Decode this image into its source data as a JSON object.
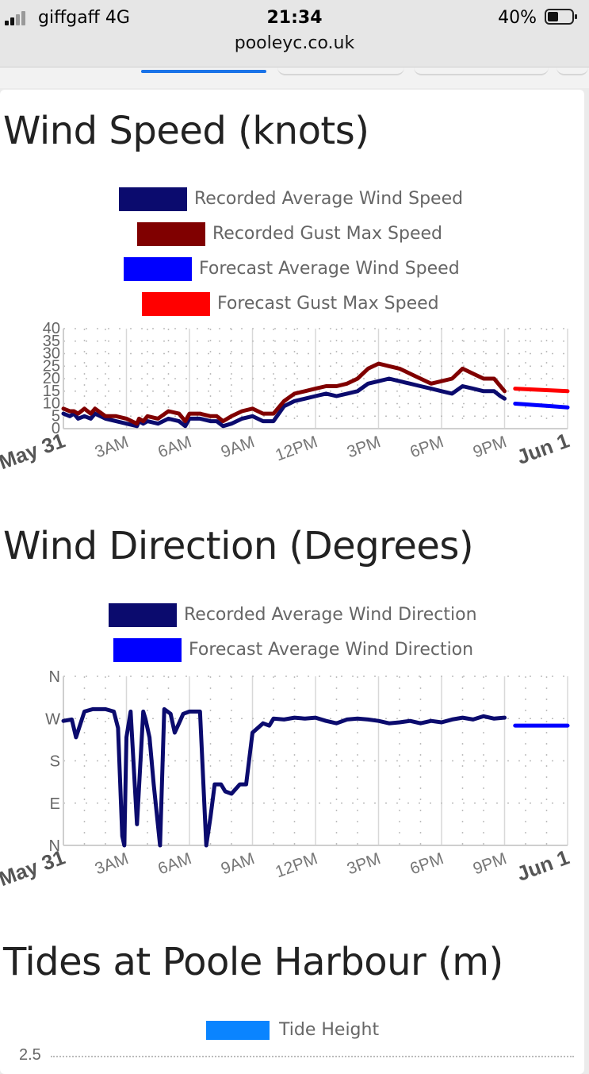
{
  "status_bar": {
    "carrier": "giffgaff   4G",
    "time": "21:34",
    "battery": "40%"
  },
  "url": "pooleyc.co.uk",
  "sections": {
    "wind_speed": {
      "title": "Wind Speed (knots)",
      "legend": [
        {
          "label": "Recorded Average Wind Speed",
          "color": "#0b0b6e"
        },
        {
          "label": "Recorded Gust Max Speed",
          "color": "#800000"
        },
        {
          "label": "Forecast Average Wind Speed",
          "color": "#0000ff"
        },
        {
          "label": "Forecast Gust Max Speed",
          "color": "#ff0000"
        }
      ]
    },
    "wind_direction": {
      "title": "Wind Direction (Degrees)",
      "legend": [
        {
          "label": "Recorded Average Wind Direction",
          "color": "#0b0b6e"
        },
        {
          "label": "Forecast Average Wind Direction",
          "color": "#0000ff"
        }
      ]
    },
    "tides": {
      "title": "Tides at Poole Harbour (m)",
      "legend": [
        {
          "label": "Tide Height",
          "color": "#0a84ff"
        }
      ],
      "first_tick": "2.5"
    }
  },
  "chart_data": [
    {
      "type": "line",
      "title": "Wind Speed (knots)",
      "ylim": [
        0,
        40
      ],
      "y_ticks": [
        0,
        5,
        10,
        15,
        20,
        25,
        30,
        35,
        40
      ],
      "x_ticks": [
        "May 31",
        "3AM",
        "6AM",
        "9AM",
        "12PM",
        "3PM",
        "6PM",
        "9PM",
        "Jun 1"
      ],
      "x_unit": "hours since May 31 00:00",
      "series": [
        {
          "name": "Recorded Average Wind Speed",
          "color": "#0b0b6e",
          "x": [
            0,
            0.3,
            0.5,
            0.7,
            1,
            1.3,
            1.5,
            2,
            2.5,
            3,
            3.5,
            3.6,
            3.8,
            4,
            4.5,
            5,
            5.5,
            5.8,
            6,
            6.5,
            7,
            7.3,
            7.6,
            8,
            8.5,
            9,
            9.5,
            10,
            10.5,
            11,
            11.5,
            12,
            12.5,
            13,
            13.5,
            14,
            14.5,
            15,
            15.5,
            16,
            16.5,
            17,
            17.5,
            18,
            18.5,
            19,
            19.5,
            20,
            20.5,
            20.8,
            21
          ],
          "y": [
            6,
            5,
            6,
            4,
            5,
            4,
            6,
            4,
            3,
            2,
            1,
            3,
            2,
            3,
            2,
            4,
            3,
            1,
            4,
            4,
            3,
            3,
            1,
            2,
            4,
            5,
            3,
            3,
            9,
            11,
            12,
            13,
            14,
            13,
            14,
            15,
            18,
            19,
            20,
            19,
            18,
            17,
            16,
            15,
            14,
            17,
            16,
            15,
            15,
            13,
            12
          ]
        },
        {
          "name": "Recorded Gust Max Speed",
          "color": "#800000",
          "x": [
            0,
            0.3,
            0.5,
            0.7,
            1,
            1.3,
            1.5,
            2,
            2.5,
            3,
            3.5,
            3.6,
            3.8,
            4,
            4.5,
            5,
            5.5,
            5.8,
            6,
            6.5,
            7,
            7.3,
            7.6,
            8,
            8.5,
            9,
            9.5,
            10,
            10.5,
            11,
            11.5,
            12,
            12.5,
            13,
            13.5,
            14,
            14.5,
            15,
            15.5,
            16,
            16.5,
            17,
            17.5,
            18,
            18.5,
            19,
            19.5,
            20,
            20.5,
            20.8,
            21
          ],
          "y": [
            8,
            7,
            7,
            6,
            8,
            6,
            8,
            5,
            5,
            4,
            2,
            4,
            3,
            5,
            4,
            7,
            6,
            3,
            6,
            6,
            5,
            5,
            3,
            5,
            7,
            8,
            6,
            6,
            11,
            14,
            15,
            16,
            17,
            17,
            18,
            20,
            24,
            26,
            25,
            24,
            22,
            20,
            18,
            19,
            20,
            24,
            22,
            20,
            20,
            17,
            15
          ]
        },
        {
          "name": "Forecast Average Wind Speed",
          "color": "#0000ff",
          "x": [
            21.5,
            22,
            22.5,
            23,
            23.5,
            24
          ],
          "y": [
            10,
            9.7,
            9.4,
            9.1,
            8.8,
            8.5
          ]
        },
        {
          "name": "Forecast Gust Max Speed",
          "color": "#ff0000",
          "x": [
            21.5,
            22,
            22.5,
            23,
            23.5,
            24
          ],
          "y": [
            16,
            15.8,
            15.6,
            15.4,
            15.2,
            15
          ]
        }
      ]
    },
    {
      "type": "line",
      "title": "Wind Direction (Degrees)",
      "ylim": [
        0,
        360
      ],
      "y_ticks": [
        0,
        90,
        180,
        270,
        360
      ],
      "y_tick_labels": [
        "N",
        "E",
        "S",
        "W",
        "N"
      ],
      "x_ticks": [
        "May 31",
        "3AM",
        "6AM",
        "9AM",
        "12PM",
        "3PM",
        "6PM",
        "9PM",
        "Jun 1"
      ],
      "x_unit": "hours since May 31 00:00",
      "series": [
        {
          "name": "Recorded Average Wind Direction",
          "color": "#0b0b6e",
          "x": [
            0,
            0.4,
            0.6,
            1,
            1.4,
            2,
            2.4,
            2.6,
            2.8,
            2.9,
            3.0,
            3.2,
            3.5,
            3.8,
            3.9,
            4.1,
            4.3,
            4.6,
            4.8,
            5.1,
            5.3,
            5.5,
            5.7,
            6,
            6.5,
            6.8,
            7,
            7.2,
            7.5,
            7.7,
            8,
            8.4,
            8.7,
            9,
            9.5,
            9.8,
            10,
            10.5,
            11,
            11.5,
            12,
            12.5,
            13,
            13.5,
            14,
            14.5,
            15,
            15.5,
            16,
            16.5,
            17,
            17.5,
            18,
            18.5,
            19,
            19.5,
            20,
            20.5,
            21
          ],
          "y": [
            265,
            268,
            230,
            285,
            290,
            290,
            285,
            250,
            20,
            0,
            230,
            285,
            45,
            285,
            270,
            230,
            130,
            0,
            290,
            280,
            240,
            260,
            280,
            285,
            285,
            0,
            60,
            130,
            130,
            115,
            110,
            130,
            130,
            240,
            260,
            255,
            270,
            268,
            272,
            270,
            272,
            265,
            260,
            268,
            270,
            268,
            265,
            260,
            262,
            265,
            260,
            265,
            262,
            268,
            272,
            268,
            275,
            270,
            272
          ]
        },
        {
          "name": "Forecast Average Wind Direction",
          "color": "#0000ff",
          "x": [
            21.5,
            22,
            23,
            24
          ],
          "y": [
            255,
            255,
            255,
            255
          ]
        }
      ]
    }
  ]
}
